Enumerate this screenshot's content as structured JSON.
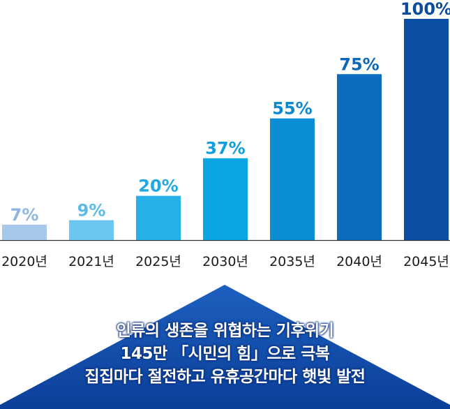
{
  "chart_data": {
    "type": "bar",
    "categories": [
      "2020년",
      "2021년",
      "2025년",
      "2030년",
      "2035년",
      "2040년",
      "2045년"
    ],
    "values": [
      7,
      9,
      20,
      37,
      55,
      75,
      100
    ],
    "value_labels": [
      "7%",
      "9%",
      "20%",
      "37%",
      "55%",
      "75%",
      "100%"
    ],
    "ylim": [
      0,
      100
    ],
    "grid": false,
    "title": "",
    "xlabel": "",
    "ylabel": "",
    "colors": [
      "#a6c8ea",
      "#6ac5f0",
      "#26b0e8",
      "#0aa6e4",
      "#0a8fd6",
      "#0c6cc0",
      "#0a4fa3"
    ],
    "label_colors": [
      "#8fb6df",
      "#5bbbe9",
      "#22a7e0",
      "#109edc",
      "#0c88cf",
      "#0d67b8",
      "#0a4c9c"
    ]
  },
  "banner": {
    "lines": [
      "인류의 생존을 위협하는 기후위기",
      "145만 「시민의 힘」으로 극복",
      "집집마다 절전하고 유휴공간마다 햇빛 발전"
    ],
    "color": "#0d47a1"
  }
}
